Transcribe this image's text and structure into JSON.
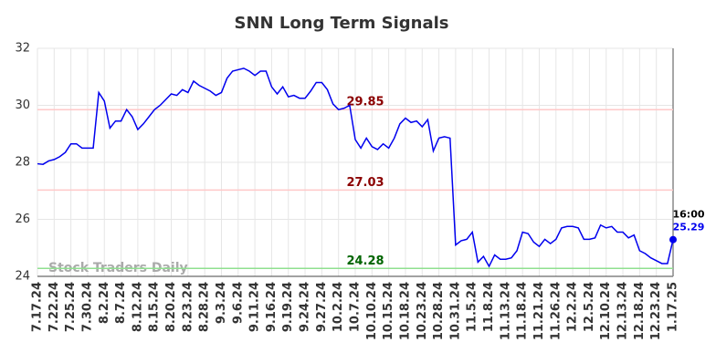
{
  "chart_data": {
    "type": "line",
    "title": "SNN Long Term Signals",
    "categories": [
      "7.17.24",
      null,
      null,
      "7.22.24",
      null,
      null,
      "7.25.24",
      null,
      null,
      "7.30.24",
      null,
      null,
      "8.2.24",
      null,
      null,
      "8.7.24",
      null,
      null,
      "8.12.24",
      null,
      null,
      "8.15.24",
      null,
      null,
      "8.20.24",
      null,
      null,
      "8.23.24",
      null,
      null,
      "8.28.24",
      null,
      null,
      "9.3.24",
      null,
      null,
      "9.6.24",
      null,
      null,
      "9.11.24",
      null,
      null,
      "9.16.24",
      null,
      null,
      "9.19.24",
      null,
      null,
      "9.24.24",
      null,
      null,
      "9.27.24",
      null,
      null,
      "10.2.24",
      null,
      null,
      "10.7.24",
      null,
      null,
      "10.10.24",
      null,
      null,
      "10.15.24",
      null,
      null,
      "10.18.24",
      null,
      null,
      "10.23.24",
      null,
      null,
      "10.28.24",
      null,
      null,
      "10.31.24",
      null,
      null,
      "11.5.24",
      null,
      null,
      "11.8.24",
      null,
      null,
      "11.13.24",
      null,
      null,
      "11.18.24",
      null,
      null,
      "11.21.24",
      null,
      null,
      "11.26.24",
      null,
      null,
      "12.2.24",
      null,
      null,
      "12.5.24",
      null,
      null,
      "12.10.24",
      null,
      null,
      "12.13.24",
      null,
      null,
      "12.18.24",
      null,
      null,
      "12.23.24",
      null,
      null,
      "1.17.25"
    ],
    "values": [
      27.95,
      27.93,
      28.05,
      28.1,
      28.2,
      28.35,
      28.65,
      28.65,
      28.5,
      28.5,
      28.5,
      30.45,
      30.15,
      29.2,
      29.45,
      29.45,
      29.85,
      29.6,
      29.15,
      29.35,
      29.6,
      29.85,
      30.0,
      30.2,
      30.4,
      30.35,
      30.55,
      30.45,
      30.85,
      30.7,
      30.6,
      30.5,
      30.35,
      30.45,
      30.95,
      31.2,
      31.25,
      31.3,
      31.2,
      31.05,
      31.2,
      31.2,
      30.65,
      30.4,
      30.65,
      30.3,
      30.35,
      30.25,
      30.25,
      30.5,
      30.8,
      30.8,
      30.55,
      30.05,
      29.85,
      29.9,
      30.0,
      28.8,
      28.5,
      28.85,
      28.55,
      28.45,
      28.65,
      28.5,
      28.85,
      29.35,
      29.55,
      29.4,
      29.45,
      29.25,
      29.5,
      28.4,
      28.85,
      28.9,
      28.85,
      25.1,
      25.25,
      25.3,
      25.55,
      24.5,
      24.7,
      24.35,
      24.75,
      24.6,
      24.6,
      24.65,
      24.9,
      25.55,
      25.5,
      25.2,
      25.05,
      25.3,
      25.15,
      25.3,
      25.7,
      25.75,
      25.75,
      25.7,
      25.3,
      25.3,
      25.35,
      25.8,
      25.7,
      25.75,
      25.55,
      25.55,
      25.35,
      25.45,
      24.9,
      24.8,
      24.65,
      24.55,
      24.45,
      24.45,
      25.29
    ],
    "color": "#0000ee",
    "ylim": [
      24,
      32
    ],
    "yticks": [
      24,
      26,
      28,
      30,
      32
    ],
    "grid": true,
    "levels": [
      {
        "value": 29.85,
        "color": "#ffc8c8",
        "label_color": "#8b0000"
      },
      {
        "value": 27.03,
        "color": "#ffc8c8",
        "label_color": "#8b0000"
      },
      {
        "value": 24.28,
        "color": "#90e090",
        "label_color": "#006400"
      }
    ],
    "last_time": "16:00",
    "watermark": "Stock Traders Daily"
  }
}
